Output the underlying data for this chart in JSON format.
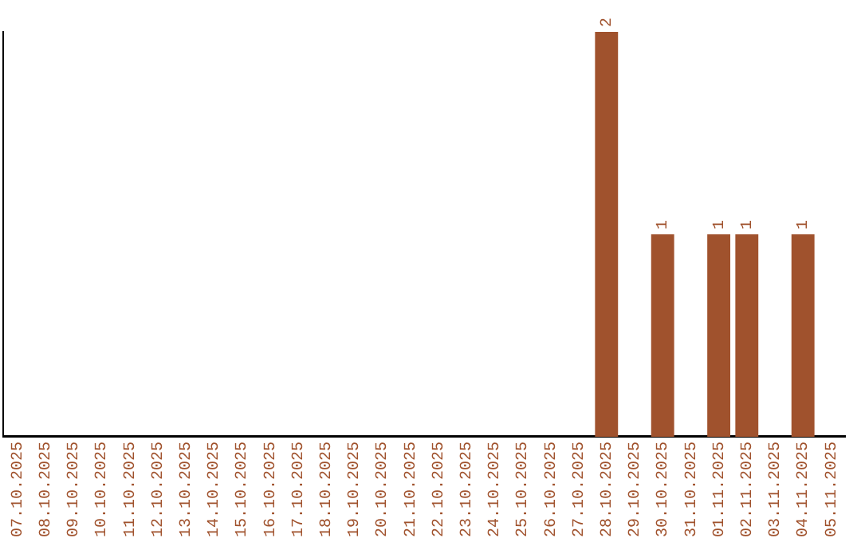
{
  "chart_data": {
    "type": "bar",
    "categories": [
      "07.10.2025",
      "08.10.2025",
      "09.10.2025",
      "10.10.2025",
      "11.10.2025",
      "12.10.2025",
      "13.10.2025",
      "14.10.2025",
      "15.10.2025",
      "16.10.2025",
      "17.10.2025",
      "18.10.2025",
      "19.10.2025",
      "20.10.2025",
      "21.10.2025",
      "22.10.2025",
      "23.10.2025",
      "24.10.2025",
      "25.10.2025",
      "26.10.2025",
      "27.10.2025",
      "28.10.2025",
      "29.10.2025",
      "30.10.2025",
      "31.10.2025",
      "01.11.2025",
      "02.11.2025",
      "03.11.2025",
      "04.11.2025",
      "05.11.2025"
    ],
    "values": [
      null,
      null,
      null,
      null,
      null,
      null,
      null,
      null,
      null,
      null,
      null,
      null,
      null,
      null,
      null,
      null,
      null,
      null,
      null,
      null,
      null,
      2,
      null,
      1,
      null,
      1,
      1,
      null,
      1,
      null
    ],
    "value_labels": [
      null,
      null,
      null,
      null,
      null,
      null,
      null,
      null,
      null,
      null,
      null,
      null,
      null,
      null,
      null,
      null,
      null,
      null,
      null,
      null,
      null,
      "2",
      null,
      "1",
      null,
      "1",
      "1",
      null,
      "1",
      null
    ],
    "color": "#a0522d",
    "grid": false,
    "legend": false,
    "tick_labels": "x"
  }
}
